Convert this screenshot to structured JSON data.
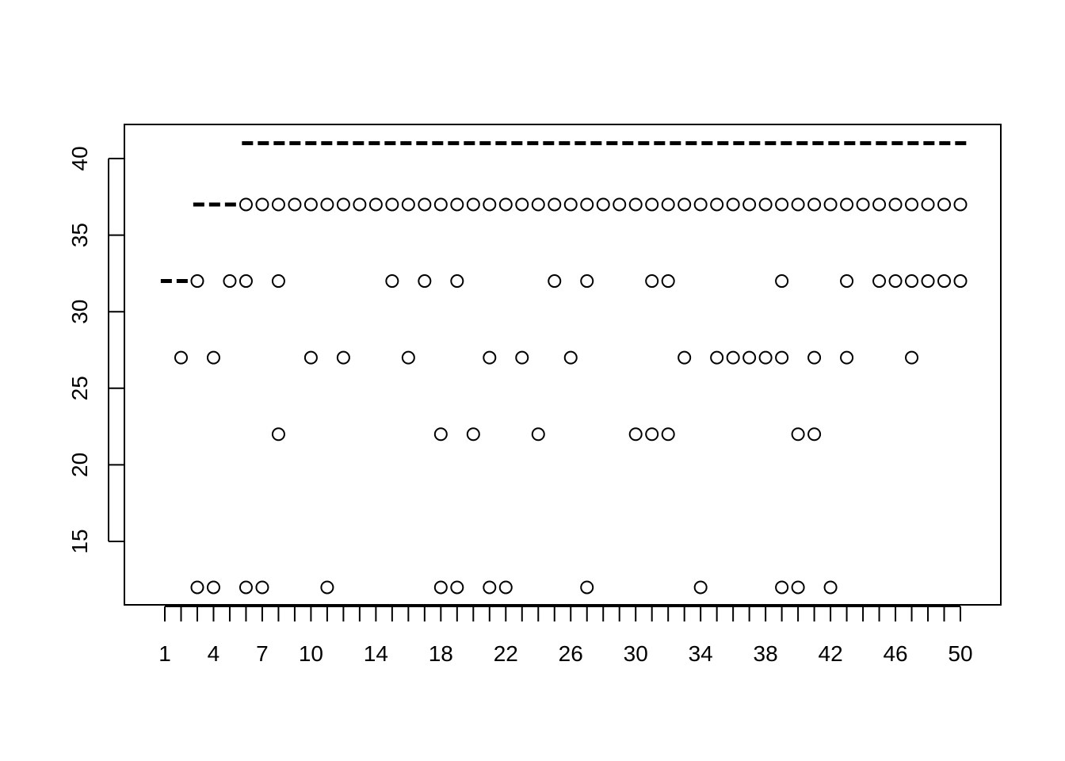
{
  "chart_data": {
    "type": "scatter",
    "title": "",
    "xlabel": "",
    "ylabel": "",
    "xlim": [
      0.5,
      51
    ],
    "ylim": [
      10.5,
      42
    ],
    "x_tick_values": [
      1,
      2,
      3,
      4,
      5,
      6,
      7,
      8,
      9,
      10,
      11,
      12,
      13,
      14,
      15,
      16,
      17,
      18,
      19,
      20,
      21,
      22,
      23,
      24,
      25,
      26,
      27,
      28,
      29,
      30,
      31,
      32,
      33,
      34,
      35,
      36,
      37,
      38,
      39,
      40,
      41,
      42,
      43,
      44,
      45,
      46,
      47,
      48,
      49,
      50
    ],
    "x_tick_labels": [
      "1",
      "4",
      "7",
      "10",
      "14",
      "18",
      "22",
      "26",
      "30",
      "34",
      "38",
      "42",
      "46",
      "50"
    ],
    "x_tick_label_positions": [
      1,
      4,
      7,
      10,
      14,
      18,
      22,
      26,
      30,
      34,
      38,
      42,
      46,
      50
    ],
    "y_ticks": [
      15,
      20,
      25,
      30,
      35,
      40
    ],
    "y_tick_labels": [
      "15",
      "20",
      "25",
      "30",
      "35",
      "40"
    ],
    "series": [
      {
        "marker": "open-circle",
        "points": [
          [
            2,
            27
          ],
          [
            3,
            32
          ],
          [
            3,
            12
          ],
          [
            4,
            27
          ],
          [
            4,
            12
          ],
          [
            5,
            32
          ],
          [
            6,
            37
          ],
          [
            6,
            32
          ],
          [
            6,
            12
          ],
          [
            7,
            37
          ],
          [
            7,
            12
          ],
          [
            8,
            37
          ],
          [
            8,
            32
          ],
          [
            8,
            22
          ],
          [
            9,
            37
          ],
          [
            10,
            37
          ],
          [
            10,
            27
          ],
          [
            11,
            37
          ],
          [
            11,
            12
          ],
          [
            12,
            37
          ],
          [
            12,
            27
          ],
          [
            13,
            37
          ],
          [
            14,
            37
          ],
          [
            15,
            37
          ],
          [
            15,
            32
          ],
          [
            16,
            37
          ],
          [
            16,
            27
          ],
          [
            17,
            37
          ],
          [
            17,
            32
          ],
          [
            18,
            37
          ],
          [
            18,
            22
          ],
          [
            18,
            12
          ],
          [
            19,
            37
          ],
          [
            19,
            32
          ],
          [
            19,
            12
          ],
          [
            20,
            37
          ],
          [
            20,
            22
          ],
          [
            21,
            37
          ],
          [
            21,
            27
          ],
          [
            21,
            12
          ],
          [
            22,
            37
          ],
          [
            22,
            12
          ],
          [
            23,
            37
          ],
          [
            23,
            27
          ],
          [
            24,
            37
          ],
          [
            24,
            22
          ],
          [
            25,
            37
          ],
          [
            25,
            32
          ],
          [
            26,
            37
          ],
          [
            26,
            27
          ],
          [
            27,
            37
          ],
          [
            27,
            32
          ],
          [
            27,
            12
          ],
          [
            28,
            37
          ],
          [
            29,
            37
          ],
          [
            30,
            37
          ],
          [
            30,
            22
          ],
          [
            31,
            37
          ],
          [
            31,
            32
          ],
          [
            31,
            22
          ],
          [
            32,
            37
          ],
          [
            32,
            32
          ],
          [
            32,
            22
          ],
          [
            33,
            37
          ],
          [
            33,
            27
          ],
          [
            34,
            37
          ],
          [
            34,
            12
          ],
          [
            35,
            37
          ],
          [
            35,
            27
          ],
          [
            36,
            37
          ],
          [
            36,
            27
          ],
          [
            37,
            37
          ],
          [
            37,
            27
          ],
          [
            38,
            37
          ],
          [
            38,
            27
          ],
          [
            39,
            37
          ],
          [
            39,
            32
          ],
          [
            39,
            27
          ],
          [
            39,
            12
          ],
          [
            40,
            37
          ],
          [
            40,
            22
          ],
          [
            40,
            12
          ],
          [
            41,
            37
          ],
          [
            41,
            27
          ],
          [
            41,
            22
          ],
          [
            42,
            37
          ],
          [
            42,
            12
          ],
          [
            43,
            37
          ],
          [
            43,
            32
          ],
          [
            43,
            27
          ],
          [
            44,
            37
          ],
          [
            45,
            37
          ],
          [
            45,
            32
          ],
          [
            46,
            37
          ],
          [
            46,
            32
          ],
          [
            47,
            37
          ],
          [
            47,
            32
          ],
          [
            47,
            27
          ],
          [
            48,
            37
          ],
          [
            48,
            32
          ],
          [
            49,
            37
          ],
          [
            49,
            32
          ],
          [
            50,
            37
          ],
          [
            50,
            32
          ]
        ]
      },
      {
        "marker": "dashed-line",
        "segments": [
          {
            "x": [
              0.75,
              2.5
            ],
            "y": 32
          },
          {
            "x": [
              2.75,
              5.5
            ],
            "y": 37
          },
          {
            "x": [
              5.75,
              50.5
            ],
            "y": 41
          }
        ]
      }
    ],
    "grid": false,
    "legend": "none",
    "colors": {
      "marks": "#000000",
      "background": "#ffffff"
    }
  }
}
